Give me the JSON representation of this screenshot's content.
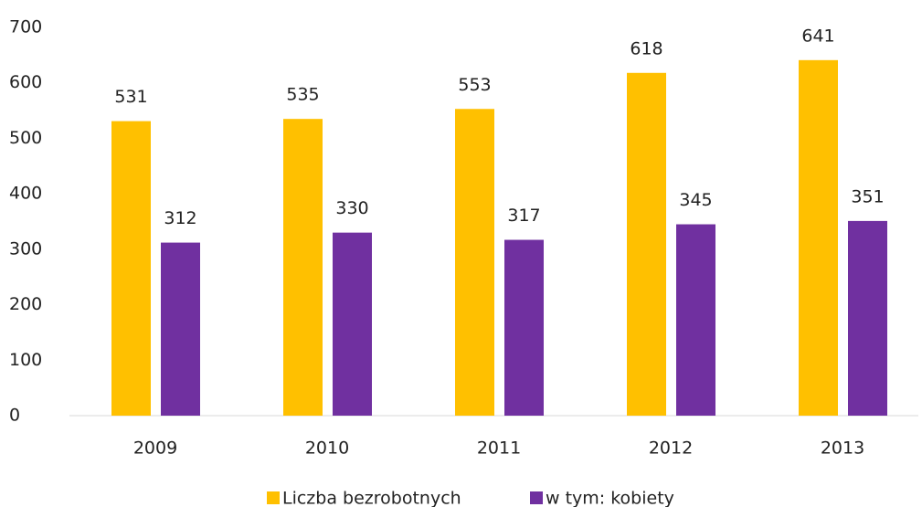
{
  "chart_data": {
    "type": "bar",
    "categories": [
      "2009",
      "2010",
      "2011",
      "2012",
      "2013"
    ],
    "series": [
      {
        "name": "Liczba bezrobotnych",
        "color": "#ffc000",
        "values": [
          531,
          535,
          553,
          618,
          641
        ]
      },
      {
        "name": "w tym: kobiety",
        "color": "#7030a0",
        "values": [
          312,
          330,
          317,
          345,
          351
        ]
      }
    ],
    "ylim": [
      0,
      700
    ],
    "yticks": [
      0,
      100,
      200,
      300,
      400,
      500,
      600,
      700
    ],
    "grid": false,
    "legend": "bottom"
  }
}
